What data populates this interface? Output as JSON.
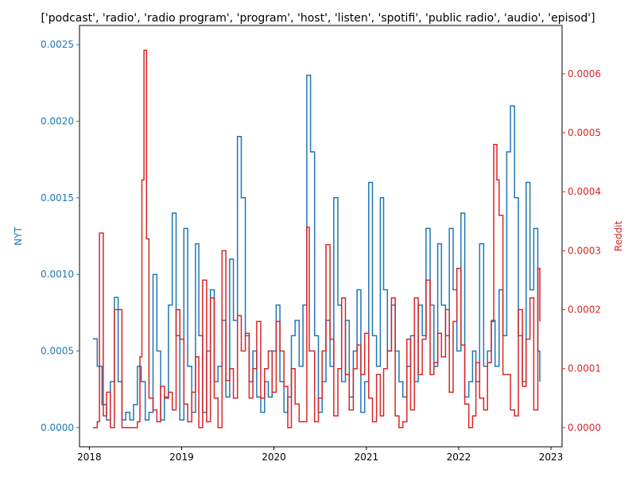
{
  "chart_data": {
    "type": "line",
    "title": "['podcast', 'radio', 'radio program', 'program', 'host', 'listen', 'spotifi', 'public radio', 'audio', 'episod']",
    "xlabel": "",
    "x_ticks": [
      "2018",
      "2019",
      "2020",
      "2021",
      "2022",
      "2023"
    ],
    "x_range": [
      "2017-11-23",
      "2023-02-14"
    ],
    "left_axis": {
      "label": "NYT",
      "color": "#1f77b4",
      "ylim": [
        -0.000125,
        0.002625
      ],
      "ticks": [
        "0.0000",
        "0.0005",
        "0.0010",
        "0.0015",
        "0.0020",
        "0.0025"
      ],
      "tick_values": [
        0,
        0.0005,
        0.001,
        0.0015,
        0.002,
        0.0025
      ]
    },
    "right_axis": {
      "label": "Reddit",
      "color": "#d62728",
      "ylim": [
        -3.25e-05,
        0.000682
      ],
      "ticks": [
        "0.0000",
        "0.0001",
        "0.0002",
        "0.0003",
        "0.0004",
        "0.0005",
        "0.0006"
      ],
      "tick_values": [
        0,
        0.0001,
        0.0002,
        0.0003,
        0.0004,
        0.0005,
        0.0006
      ]
    },
    "series": [
      {
        "axis": "left",
        "color": "#1f77b4",
        "x": [
          "2018-01-15",
          "2018-02-01",
          "2018-02-20",
          "2018-03-10",
          "2018-03-25",
          "2018-04-10",
          "2018-04-25",
          "2018-05-10",
          "2018-05-25",
          "2018-06-10",
          "2018-06-25",
          "2018-07-10",
          "2018-07-25",
          "2018-08-10",
          "2018-08-25",
          "2018-09-10",
          "2018-09-25",
          "2018-10-10",
          "2018-10-25",
          "2018-11-10",
          "2018-11-25",
          "2018-12-10",
          "2018-12-25",
          "2019-01-10",
          "2019-01-25",
          "2019-02-10",
          "2019-02-25",
          "2019-03-10",
          "2019-03-25",
          "2019-04-10",
          "2019-04-25",
          "2019-05-10",
          "2019-05-25",
          "2019-06-10",
          "2019-06-25",
          "2019-07-10",
          "2019-07-25",
          "2019-08-10",
          "2019-08-25",
          "2019-09-10",
          "2019-09-25",
          "2019-10-10",
          "2019-10-25",
          "2019-11-10",
          "2019-11-25",
          "2019-12-10",
          "2019-12-25",
          "2020-01-10",
          "2020-01-25",
          "2020-02-10",
          "2020-02-25",
          "2020-03-10",
          "2020-03-25",
          "2020-04-10",
          "2020-04-25",
          "2020-05-10",
          "2020-05-25",
          "2020-06-10",
          "2020-06-25",
          "2020-07-10",
          "2020-07-25",
          "2020-08-10",
          "2020-08-25",
          "2020-09-10",
          "2020-09-25",
          "2020-10-10",
          "2020-10-25",
          "2020-11-10",
          "2020-11-25",
          "2020-12-10",
          "2020-12-25",
          "2021-01-10",
          "2021-01-25",
          "2021-02-10",
          "2021-02-25",
          "2021-03-10",
          "2021-03-25",
          "2021-04-10",
          "2021-04-25",
          "2021-05-10",
          "2021-05-25",
          "2021-06-10",
          "2021-06-25",
          "2021-07-10",
          "2021-07-25",
          "2021-08-10",
          "2021-08-25",
          "2021-09-10",
          "2021-09-25",
          "2021-10-10",
          "2021-10-25",
          "2021-11-10",
          "2021-11-25",
          "2021-12-10",
          "2021-12-25",
          "2022-01-10",
          "2022-01-25",
          "2022-02-10",
          "2022-02-25",
          "2022-03-10",
          "2022-03-25",
          "2022-04-10",
          "2022-04-25",
          "2022-05-10",
          "2022-05-25",
          "2022-06-10",
          "2022-06-25",
          "2022-07-10",
          "2022-07-25",
          "2022-08-10",
          "2022-08-25",
          "2022-09-10",
          "2022-09-25",
          "2022-10-10",
          "2022-10-25",
          "2022-11-10",
          "2022-11-18"
        ],
        "values": [
          0.00058,
          0.0004,
          0.00015,
          5e-05,
          0.0003,
          0.00085,
          0.0003,
          5e-05,
          0.0001,
          5e-05,
          0.00015,
          0.0004,
          0.0003,
          5e-05,
          0.0001,
          0.001,
          0.0005,
          5e-05,
          0.0002,
          0.0008,
          0.0014,
          0.0006,
          5e-05,
          0.0013,
          0.0004,
          0.0001,
          0.0012,
          0.0006,
          0.0001,
          0.0005,
          0.0009,
          0.0003,
          0.0004,
          0.0007,
          0.0002,
          0.0011,
          0.0007,
          0.0019,
          0.0015,
          0.0006,
          0.0003,
          0.0005,
          0.0002,
          0.0001,
          0.0003,
          0.0002,
          0.0005,
          0.0008,
          0.0003,
          0.0001,
          0.0002,
          0.0006,
          0.0007,
          0.0004,
          0.0008,
          0.0023,
          0.0018,
          0.0006,
          0.0001,
          0.0003,
          0.0007,
          0.0004,
          0.0015,
          0.0008,
          0.0003,
          0.0007,
          0.0002,
          0.0005,
          0.0009,
          0.0001,
          0.0003,
          0.0016,
          0.0006,
          0.0004,
          0.0015,
          0.0009,
          0.0005,
          0.0008,
          0.0005,
          0.0003,
          0.0002,
          0.0004,
          0.0006,
          0.0003,
          0.0008,
          0.0006,
          0.0013,
          0.0008,
          0.0004,
          0.0012,
          0.0008,
          0.0006,
          0.0013,
          0.0009,
          0.0005,
          0.0014,
          0.0002,
          0.0003,
          0.0005,
          0.0003,
          0.0012,
          0.0004,
          0.0005,
          0.0007,
          0.0004,
          0.0009,
          0.0006,
          0.0018,
          0.0021,
          0.0015,
          0.0006,
          0.0003,
          0.0016,
          0.0009,
          0.0013,
          0.0005,
          0.0003
        ]
      },
      {
        "axis": "right",
        "color": "#d62728",
        "x": [
          "2018-01-15",
          "2018-02-01",
          "2018-02-10",
          "2018-02-25",
          "2018-03-10",
          "2018-03-25",
          "2018-04-10",
          "2018-04-25",
          "2018-05-10",
          "2018-05-25",
          "2018-06-10",
          "2018-06-25",
          "2018-07-10",
          "2018-07-20",
          "2018-07-28",
          "2018-08-05",
          "2018-08-15",
          "2018-08-25",
          "2018-09-10",
          "2018-09-25",
          "2018-10-10",
          "2018-10-25",
          "2018-11-10",
          "2018-11-25",
          "2018-12-10",
          "2018-12-25",
          "2019-01-10",
          "2019-01-25",
          "2019-02-10",
          "2019-02-25",
          "2019-03-10",
          "2019-03-25",
          "2019-04-10",
          "2019-04-25",
          "2019-05-10",
          "2019-05-25",
          "2019-06-10",
          "2019-06-25",
          "2019-07-10",
          "2019-07-25",
          "2019-08-10",
          "2019-08-25",
          "2019-09-10",
          "2019-09-25",
          "2019-10-10",
          "2019-10-25",
          "2019-11-10",
          "2019-11-25",
          "2019-12-10",
          "2019-12-25",
          "2020-01-10",
          "2020-01-25",
          "2020-02-10",
          "2020-02-25",
          "2020-03-10",
          "2020-03-25",
          "2020-04-10",
          "2020-04-25",
          "2020-05-10",
          "2020-05-20",
          "2020-06-10",
          "2020-06-25",
          "2020-07-10",
          "2020-07-25",
          "2020-08-10",
          "2020-08-25",
          "2020-09-10",
          "2020-09-25",
          "2020-10-10",
          "2020-10-25",
          "2020-11-10",
          "2020-11-25",
          "2020-12-10",
          "2020-12-25",
          "2021-01-10",
          "2021-01-25",
          "2021-02-10",
          "2021-02-25",
          "2021-03-10",
          "2021-03-25",
          "2021-04-10",
          "2021-04-25",
          "2021-05-10",
          "2021-05-25",
          "2021-06-10",
          "2021-06-25",
          "2021-07-10",
          "2021-07-25",
          "2021-08-10",
          "2021-08-25",
          "2021-09-10",
          "2021-09-25",
          "2021-10-10",
          "2021-10-25",
          "2021-11-10",
          "2021-11-25",
          "2021-12-10",
          "2021-12-25",
          "2022-01-10",
          "2022-01-25",
          "2022-02-10",
          "2022-02-25",
          "2022-03-10",
          "2022-03-25",
          "2022-04-10",
          "2022-04-25",
          "2022-05-10",
          "2022-05-20",
          "2022-06-01",
          "2022-06-10",
          "2022-06-25",
          "2022-07-10",
          "2022-07-25",
          "2022-08-10",
          "2022-08-25",
          "2022-09-10",
          "2022-09-25",
          "2022-10-10",
          "2022-10-25",
          "2022-11-10",
          "2022-11-18"
        ],
        "values": [
          0.0,
          1e-05,
          0.00033,
          2e-05,
          6e-05,
          0.0,
          0.0002,
          0.0002,
          0.0,
          0.0,
          0.0,
          0.0,
          1e-05,
          0.00012,
          0.00042,
          0.00064,
          0.00032,
          5e-05,
          3e-05,
          1e-05,
          7e-05,
          5e-05,
          6e-05,
          3e-05,
          0.0002,
          0.00015,
          4e-05,
          1e-05,
          6e-05,
          0.00012,
          0.0,
          0.00025,
          1e-05,
          0.00022,
          5e-05,
          0.0,
          0.0003,
          8e-05,
          0.0001,
          5e-05,
          0.00019,
          0.00013,
          0.00016,
          5e-05,
          0.0001,
          0.00018,
          5e-05,
          0.0001,
          0.00013,
          6e-05,
          0.00018,
          0.00013,
          7e-05,
          0.0,
          0.0001,
          4e-05,
          1e-05,
          1e-05,
          0.00034,
          0.00013,
          1e-05,
          5e-05,
          0.00013,
          0.00031,
          0.00015,
          2e-05,
          0.0001,
          0.00022,
          9e-05,
          3e-05,
          0.0001,
          0.00014,
          9e-05,
          0.00016,
          5e-05,
          1e-05,
          9e-05,
          2e-05,
          0.0001,
          0.00013,
          0.00022,
          2e-05,
          0.0,
          1e-05,
          0.00015,
          3e-05,
          0.00022,
          9e-05,
          0.00015,
          0.00025,
          9e-05,
          0.00011,
          0.00016,
          0.00012,
          0.0002,
          6e-05,
          0.00018,
          0.00027,
          0.00014,
          4e-05,
          0.0,
          2e-05,
          0.00011,
          5e-05,
          3e-05,
          0.00011,
          0.00018,
          0.00048,
          0.00042,
          0.00036,
          9e-05,
          9e-05,
          3e-05,
          2e-05,
          0.0002,
          7e-05,
          0.00015,
          0.00022,
          3e-05,
          0.00027,
          0.00018
        ]
      }
    ]
  }
}
